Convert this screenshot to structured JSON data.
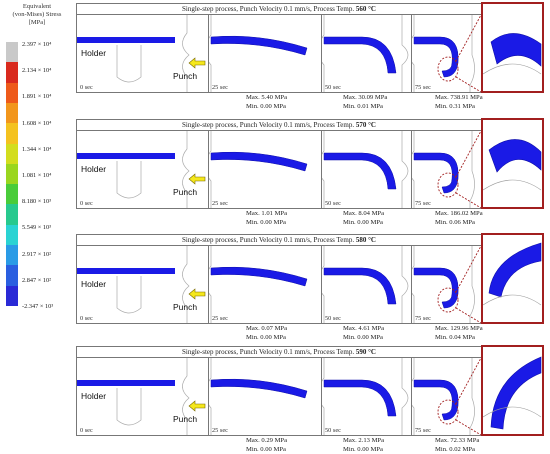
{
  "legend": {
    "title_lines": [
      "Equivalent",
      "(von-Mises) Stress",
      "[MPa]"
    ],
    "colors": [
      "#c9c9c9",
      "#d92a1e",
      "#ee5a1a",
      "#f2961c",
      "#f4c21f",
      "#d3dd1e",
      "#9ad61f",
      "#49cc3a",
      "#27c98e",
      "#2ad3d3",
      "#2a9be6",
      "#2a5fe0",
      "#2a2ad6"
    ],
    "labels": [
      "2.397 × 10⁴",
      "2.134 × 10⁴",
      "1.891 × 10⁴",
      "1.608 × 10⁴",
      "1.344 × 10⁴",
      "1.081 × 10⁴",
      "8.180 × 10³",
      "5.549 × 10³",
      "2.917 × 10²",
      "2.847 × 10²",
      "-2.347 × 10³"
    ]
  },
  "labels": {
    "holder": "Holder",
    "punch": "Punch",
    "mpa": "MPa"
  },
  "cases": [
    {
      "title": "Single-step process, Punch Velocity 0.1 mm/s, Process Temp.",
      "temp": "560 °C",
      "times": [
        "0 sec",
        "25 sec",
        "50 sec",
        "75 sec"
      ],
      "stats": [
        {
          "max": "5.40",
          "min": "0.00"
        },
        {
          "max": "30.09",
          "min": "0.01"
        },
        {
          "max": "738.91",
          "min": "0.31"
        }
      ]
    },
    {
      "title": "Single-step process, Punch Velocity 0.1 mm/s, Process Temp.",
      "temp": "570 °C",
      "times": [
        "0 sec",
        "25 sec",
        "50 sec",
        "75 sec"
      ],
      "stats": [
        {
          "max": "1.01",
          "min": "0.00"
        },
        {
          "max": "8.04",
          "min": "0.00"
        },
        {
          "max": "186.02",
          "min": "0.06"
        }
      ]
    },
    {
      "title": "Single-step process, Punch Velocity 0.1 mm/s, Process Temp.",
      "temp": "580 °C",
      "times": [
        "0 sec",
        "25 sec",
        "50 sec",
        "75 sec"
      ],
      "stats": [
        {
          "max": "0.07",
          "min": "0.00"
        },
        {
          "max": "4.61",
          "min": "0.00"
        },
        {
          "max": "129.96",
          "min": "0.04"
        }
      ]
    },
    {
      "title": "Single-step process, Punch Velocity 0.1 mm/s, Process Temp.",
      "temp": "590 °C",
      "times": [
        "0 sec",
        "25 sec",
        "50 sec",
        "75 sec"
      ],
      "stats": [
        {
          "max": "0.29",
          "min": "0.00"
        },
        {
          "max": "2.13",
          "min": "0.00"
        },
        {
          "max": "72.33",
          "min": "0.02"
        }
      ]
    }
  ]
}
